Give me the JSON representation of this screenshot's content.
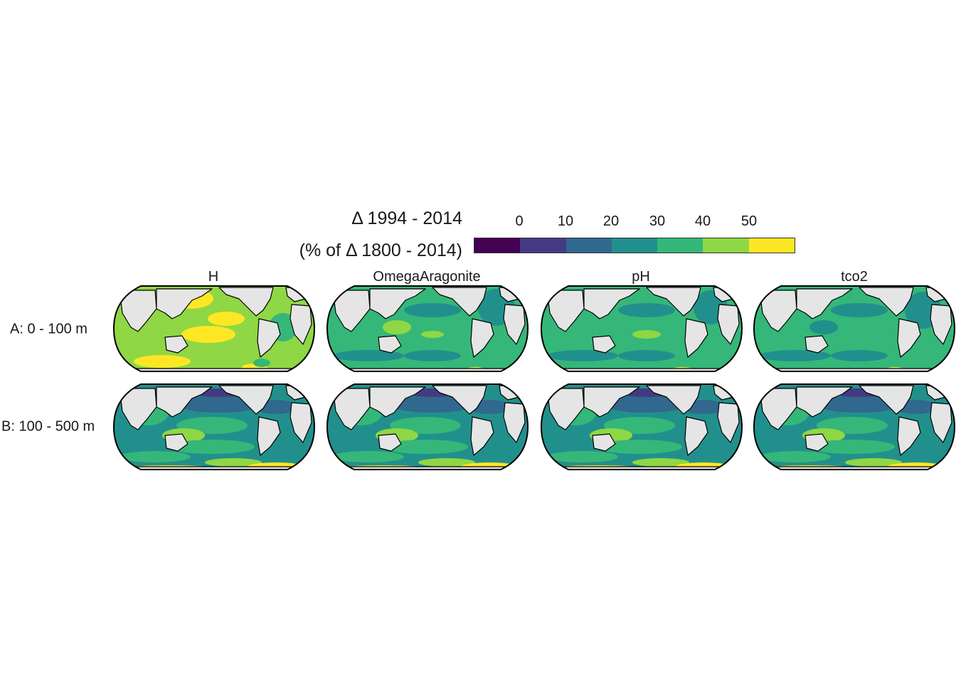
{
  "legend": {
    "title_line1": "Δ 1994 - 2014",
    "title_line2": "(% of Δ 1800 - 2014)",
    "ticks": [
      "0",
      "10",
      "20",
      "30",
      "40",
      "50"
    ],
    "bin_colors": [
      "#440154",
      "#443a83",
      "#31688e",
      "#21908d",
      "#35b779",
      "#8fd744",
      "#fde725"
    ]
  },
  "columns": [
    "H",
    "OmegaAragonite",
    "pH",
    "tco2"
  ],
  "rows": [
    "A: 0 - 100 m",
    "B: 100 - 500 m"
  ],
  "colors": {
    "land": "#e5e5e5",
    "outline": "#000000",
    "dominant_upper": "#35b779",
    "dominant_lower": "#21908d"
  }
}
